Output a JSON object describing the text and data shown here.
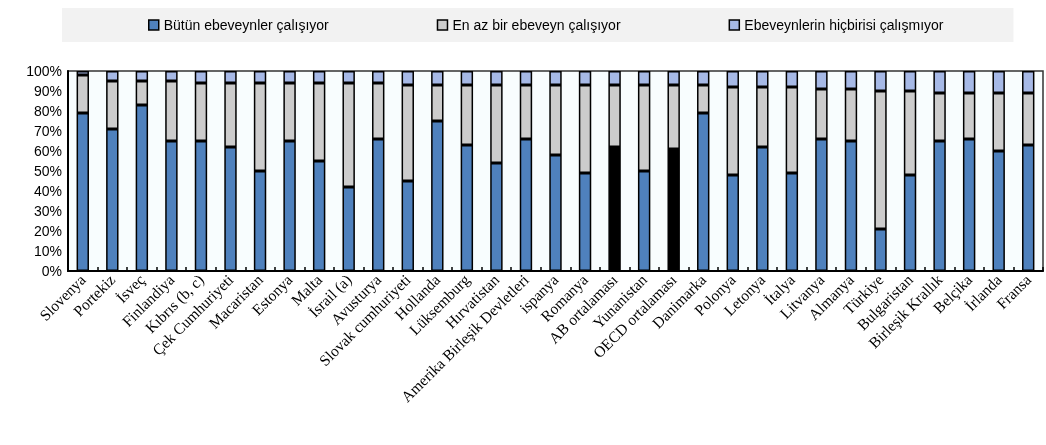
{
  "chart_data": {
    "type": "bar",
    "stacked": true,
    "categories": [
      "Slovenya",
      "Portekiz",
      "İsveç",
      "Finlandiya",
      "Kıbrıs (b, c)",
      "Çek Cumhuriyeti",
      "Macaristan",
      "Estonya",
      "Malta",
      "İsrail (a)",
      "Avusturya",
      "Slovak cumhuriyeti",
      "Hollanda",
      "Lüksemburg",
      "Hırvatistan",
      "Amerika Birleşik Devletleri",
      "ispanya",
      "Romanya",
      "AB ortalaması",
      "Yunanistan",
      "OECD ortalaması",
      "Danimarka",
      "Polonya",
      "Letonya",
      "İtalya",
      "Litvanya",
      "Almanya",
      "Türkiye",
      "Bulgaristan",
      "Birleşik Krallık",
      "Belçika",
      "İrlanda",
      "Fransa"
    ],
    "series": [
      {
        "name": "Bütün ebeveynler çalışıyor",
        "color": "#4f81bd",
        "colors": [
          "#4f81bd",
          "#4f81bd",
          "#4f81bd",
          "#4f81bd",
          "#4f81bd",
          "#4f81bd",
          "#4f81bd",
          "#4f81bd",
          "#4f81bd",
          "#4f81bd",
          "#4f81bd",
          "#4f81bd",
          "#4f81bd",
          "#4f81bd",
          "#4f81bd",
          "#4f81bd",
          "#4f81bd",
          "#4f81bd",
          "#000000",
          "#4f81bd",
          "#000000",
          "#4f81bd",
          "#4f81bd",
          "#4f81bd",
          "#4f81bd",
          "#4f81bd",
          "#4f81bd",
          "#4f81bd",
          "#4f81bd",
          "#4f81bd",
          "#4f81bd",
          "#4f81bd",
          "#4f81bd"
        ],
        "values": [
          79,
          71,
          83,
          65,
          65,
          62,
          50,
          65,
          55,
          42,
          66,
          45,
          75,
          63,
          54,
          66,
          58,
          49,
          62,
          50,
          61,
          79,
          48,
          62,
          49,
          66,
          65,
          21,
          48,
          65,
          66,
          60,
          63
        ]
      },
      {
        "name": "En az bir ebeveyn çalışıyor",
        "color": "#cccccc",
        "values": [
          19,
          24,
          12,
          30,
          29,
          32,
          44,
          29,
          39,
          52,
          28,
          48,
          18,
          30,
          39,
          27,
          35,
          44,
          31,
          43,
          32,
          14,
          44,
          30,
          43,
          25,
          26,
          69,
          42,
          24,
          23,
          29,
          26
        ]
      },
      {
        "name": "Ebeveynlerin hiçbirisi çalışmıyor",
        "color": "#a6b9e6",
        "values": [
          2,
          5,
          5,
          5,
          6,
          6,
          6,
          6,
          6,
          6,
          6,
          7,
          7,
          7,
          7,
          7,
          7,
          7,
          7,
          7,
          7,
          7,
          8,
          8,
          8,
          9,
          9,
          10,
          10,
          11,
          11,
          11,
          11
        ]
      }
    ],
    "ylim": [
      0,
      100
    ],
    "yticks": [
      {
        "value": 0,
        "label": "0%"
      },
      {
        "value": 10,
        "label": "10%"
      },
      {
        "value": 20,
        "label": "20%"
      },
      {
        "value": 30,
        "label": "30%"
      },
      {
        "value": 40,
        "label": "40%"
      },
      {
        "value": 50,
        "label": "50%"
      },
      {
        "value": 60,
        "label": "60%"
      },
      {
        "value": 70,
        "label": "70%"
      },
      {
        "value": 80,
        "label": "80%"
      },
      {
        "value": 90,
        "label": "90%"
      },
      {
        "value": 100,
        "label": "100%"
      }
    ],
    "legend": "top",
    "grid": false
  }
}
